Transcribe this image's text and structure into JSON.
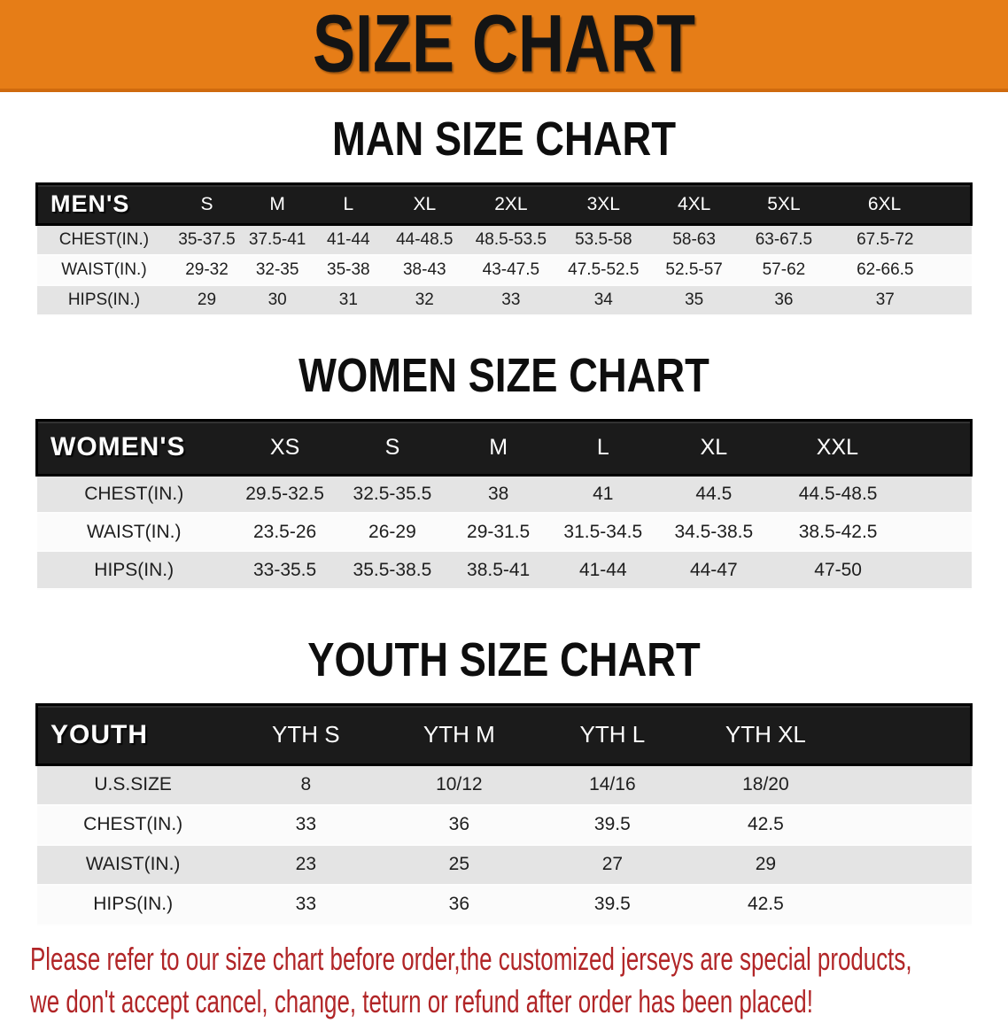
{
  "banner": {
    "title": "SIZE CHART"
  },
  "colors": {
    "banner_orange": "#e67d17",
    "header_black": "#1b1b1b",
    "row_gray": "#e4e4e4",
    "row_white": "#fbfbfb",
    "disclaimer_red": "#b12527"
  },
  "sections": [
    {
      "title": "MAN SIZE CHART",
      "header_label": "MEN'S",
      "columns": [
        "S",
        "M",
        "L",
        "XL",
        "2XL",
        "3XL",
        "4XL",
        "5XL",
        "6XL"
      ],
      "rows": [
        {
          "label": "CHEST(IN.)",
          "values": [
            "35-37.5",
            "37.5-41",
            "41-44",
            "44-48.5",
            "48.5-53.5",
            "53.5-58",
            "58-63",
            "63-67.5",
            "67.5-72"
          ]
        },
        {
          "label": "WAIST(IN.)",
          "values": [
            "29-32",
            "32-35",
            "35-38",
            "38-43",
            "43-47.5",
            "47.5-52.5",
            "52.5-57",
            "57-62",
            "62-66.5"
          ]
        },
        {
          "label": "HIPS(IN.)",
          "values": [
            "29",
            "30",
            "31",
            "32",
            "33",
            "34",
            "35",
            "36",
            "37"
          ]
        }
      ]
    },
    {
      "title": "WOMEN SIZE CHART",
      "header_label": "WOMEN'S",
      "columns": [
        "XS",
        "S",
        "M",
        "L",
        "XL",
        "XXL"
      ],
      "rows": [
        {
          "label": "CHEST(IN.)",
          "values": [
            "29.5-32.5",
            "32.5-35.5",
            "38",
            "41",
            "44.5",
            "44.5-48.5"
          ]
        },
        {
          "label": "WAIST(IN.)",
          "values": [
            "23.5-26",
            "26-29",
            "29-31.5",
            "31.5-34.5",
            "34.5-38.5",
            "38.5-42.5"
          ]
        },
        {
          "label": "HIPS(IN.)",
          "values": [
            "33-35.5",
            "35.5-38.5",
            "38.5-41",
            "41-44",
            "44-47",
            "47-50"
          ]
        }
      ]
    },
    {
      "title": "YOUTH SIZE CHART",
      "header_label": "YOUTH",
      "columns": [
        "YTH S",
        "YTH M",
        "YTH L",
        "YTH XL"
      ],
      "rows": [
        {
          "label": "U.S.SIZE",
          "values": [
            "8",
            "10/12",
            "14/16",
            "18/20"
          ]
        },
        {
          "label": "CHEST(IN.)",
          "values": [
            "33",
            "36",
            "39.5",
            "42.5"
          ]
        },
        {
          "label": "WAIST(IN.)",
          "values": [
            "23",
            "25",
            "27",
            "29"
          ]
        },
        {
          "label": "HIPS(IN.)",
          "values": [
            "33",
            "36",
            "39.5",
            "42.5"
          ]
        }
      ]
    }
  ],
  "disclaimer": {
    "line1": "Please refer to our size chart before order,the customized jerseys are special products,",
    "line2": "we don't accept cancel, change, teturn or refund after order has been placed!"
  }
}
